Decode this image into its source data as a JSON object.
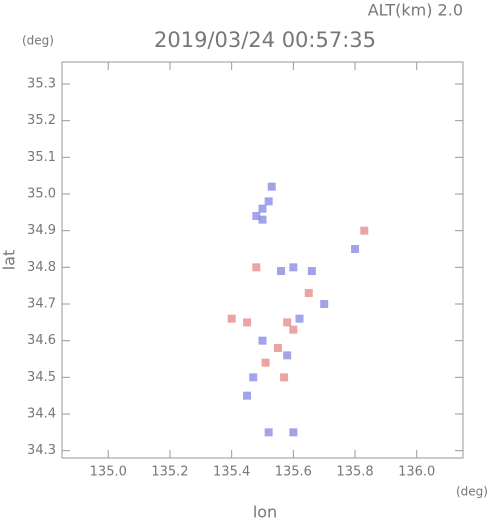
{
  "chart_data": {
    "type": "scatter",
    "title": "2019/03/24 00:57:35",
    "subtitle": "ALT(km) 2.0",
    "x_label": "lon",
    "y_label": "lat",
    "x_unit": "(deg)",
    "y_unit": "(deg)",
    "xlim": [
      134.85,
      136.15
    ],
    "ylim": [
      34.28,
      35.36
    ],
    "xticks": [
      {
        "value": 135,
        "label": "135.0"
      },
      135.2,
      135.4,
      135.6,
      135.8,
      {
        "value": 136,
        "label": "136.0"
      }
    ],
    "yticks": [
      34.3,
      34.4,
      34.5,
      34.6,
      34.7,
      34.8,
      34.9,
      {
        "value": 35,
        "label": "35.0"
      },
      35.1,
      35.2,
      35.3
    ],
    "series": [
      {
        "color": "#8c8ce6",
        "x": [
          135.5,
          135.52,
          135.48,
          135.53,
          135.5,
          135.56,
          135.6,
          135.58,
          135.62,
          135.5,
          135.47,
          135.7,
          135.66,
          135.8,
          135.6,
          135.52,
          135.45
        ],
        "y": [
          34.96,
          34.98,
          34.94,
          35.02,
          34.93,
          34.79,
          34.8,
          34.56,
          34.66,
          34.6,
          34.5,
          34.7,
          34.79,
          34.85,
          34.35,
          34.35,
          34.45
        ]
      },
      {
        "color": "#e68c8c",
        "x": [
          135.45,
          135.58,
          135.55,
          135.6,
          135.48,
          135.83,
          135.65,
          135.51,
          135.4,
          135.57
        ],
        "y": [
          34.65,
          34.65,
          34.58,
          34.63,
          34.8,
          34.9,
          34.73,
          34.54,
          34.66,
          34.5
        ]
      }
    ]
  }
}
